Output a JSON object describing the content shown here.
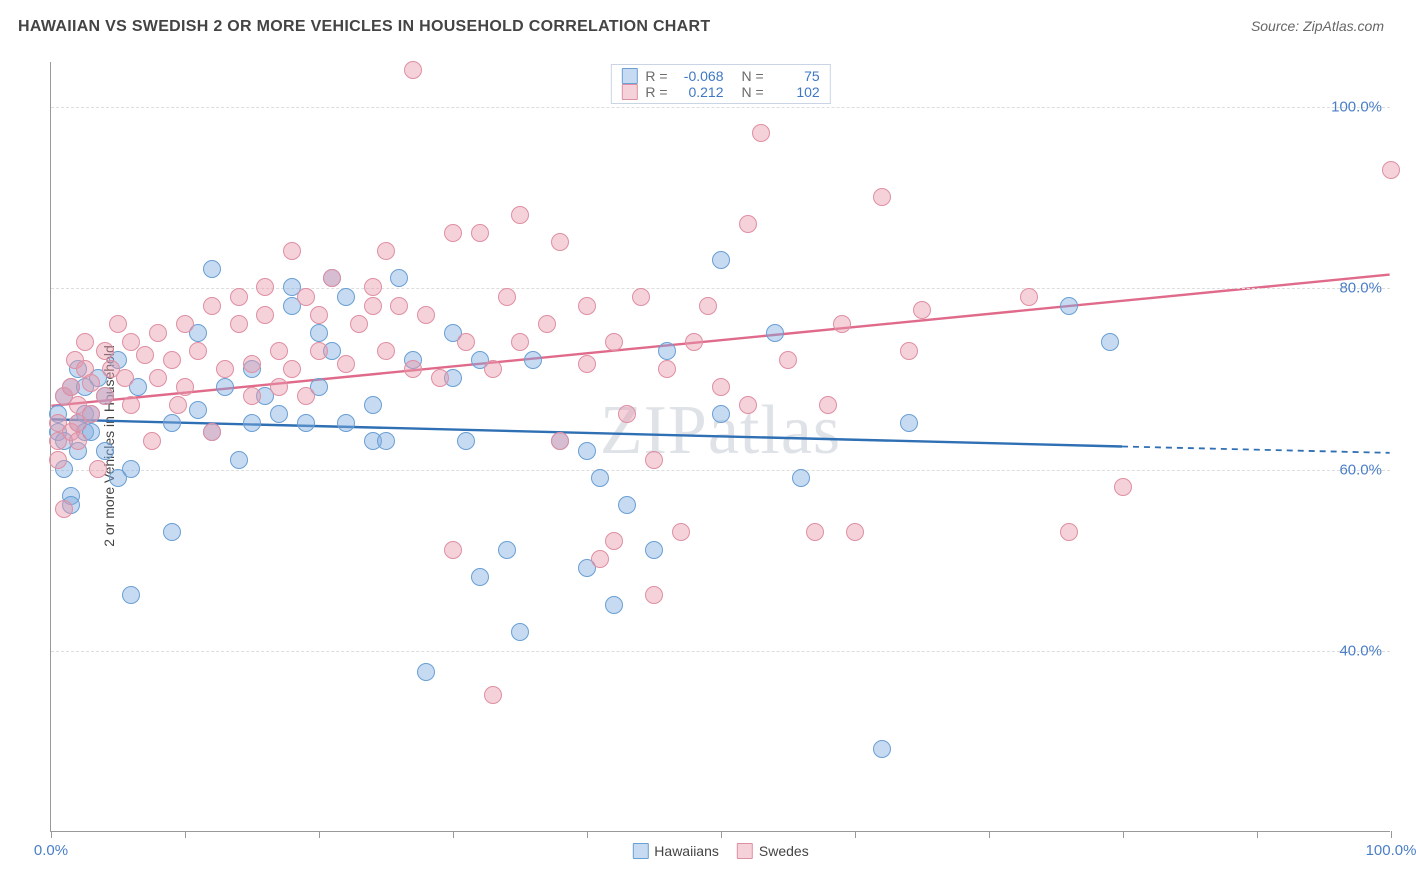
{
  "title": "HAWAIIAN VS SWEDISH 2 OR MORE VEHICLES IN HOUSEHOLD CORRELATION CHART",
  "source": "Source: ZipAtlas.com",
  "watermark": "ZIPatlas",
  "ylabel": "2 or more Vehicles in Household",
  "type": "scatter",
  "xlim": [
    0,
    100
  ],
  "ylim": [
    20,
    105
  ],
  "ytick_labels": [
    "40.0%",
    "60.0%",
    "80.0%",
    "100.0%"
  ],
  "ytick_values": [
    40,
    60,
    80,
    100
  ],
  "xtick_positions": [
    0,
    10,
    20,
    30,
    40,
    50,
    60,
    70,
    80,
    90,
    100
  ],
  "xtick_min_label": "0.0%",
  "xtick_max_label": "100.0%",
  "grid_color": "#dddddd",
  "axis_color": "#999999",
  "background_color": "#ffffff",
  "marker_radius": 9,
  "marker_stroke_width": 1.2,
  "series": [
    {
      "name": "Hawaiians",
      "fill_color": "rgba(129,172,223,0.45)",
      "stroke_color": "#6a9fd4",
      "line_color": "#2f6fb3",
      "R": "-0.068",
      "N": "75",
      "regression": {
        "x1": 0,
        "y1": 65.5,
        "x2": 80,
        "y2": 62.5,
        "x2_ext": 100,
        "y2_ext": 61.8
      },
      "points": [
        [
          0.5,
          64
        ],
        [
          0.5,
          66
        ],
        [
          1,
          68
        ],
        [
          1,
          63
        ],
        [
          1,
          60
        ],
        [
          1.5,
          69
        ],
        [
          1.5,
          57
        ],
        [
          1.5,
          56
        ],
        [
          2,
          65
        ],
        [
          2,
          71
        ],
        [
          2,
          62
        ],
        [
          2.5,
          64
        ],
        [
          2.5,
          66
        ],
        [
          2.5,
          69
        ],
        [
          3,
          64
        ],
        [
          3,
          66
        ],
        [
          3.5,
          70
        ],
        [
          4,
          62
        ],
        [
          4,
          68
        ],
        [
          5,
          59
        ],
        [
          5,
          72
        ],
        [
          6,
          46
        ],
        [
          6,
          60
        ],
        [
          6.5,
          69
        ],
        [
          9,
          65
        ],
        [
          9,
          53
        ],
        [
          11,
          66.5
        ],
        [
          11,
          75
        ],
        [
          12,
          82
        ],
        [
          12,
          64
        ],
        [
          13,
          69
        ],
        [
          14,
          61
        ],
        [
          15,
          65
        ],
        [
          15,
          71
        ],
        [
          16,
          68
        ],
        [
          17,
          66
        ],
        [
          18,
          78
        ],
        [
          18,
          80
        ],
        [
          19,
          65
        ],
        [
          20,
          75
        ],
        [
          20,
          69
        ],
        [
          21,
          73
        ],
        [
          21,
          81
        ],
        [
          22,
          79
        ],
        [
          22,
          65
        ],
        [
          24,
          67
        ],
        [
          24,
          63
        ],
        [
          25,
          63
        ],
        [
          26,
          81
        ],
        [
          27,
          72
        ],
        [
          28,
          37.5
        ],
        [
          30,
          75
        ],
        [
          30,
          70
        ],
        [
          31,
          63
        ],
        [
          32,
          72
        ],
        [
          32,
          48
        ],
        [
          34,
          51
        ],
        [
          35,
          42
        ],
        [
          36,
          72
        ],
        [
          38,
          63
        ],
        [
          40,
          62
        ],
        [
          40,
          49
        ],
        [
          41,
          59
        ],
        [
          42,
          45
        ],
        [
          43,
          56
        ],
        [
          45,
          51
        ],
        [
          46,
          73
        ],
        [
          50,
          83
        ],
        [
          50,
          66
        ],
        [
          54,
          75
        ],
        [
          56,
          59
        ],
        [
          62,
          29
        ],
        [
          64,
          65
        ],
        [
          76,
          78
        ],
        [
          79,
          74
        ]
      ]
    },
    {
      "name": "Swedes",
      "fill_color": "rgba(233,154,173,0.45)",
      "stroke_color": "#df8fa3",
      "line_color": "#e06a8a",
      "R": "0.212",
      "N": "102",
      "regression": {
        "x1": 0,
        "y1": 67,
        "x2": 100,
        "y2": 81.5
      },
      "points": [
        [
          0.5,
          61
        ],
        [
          0.5,
          63
        ],
        [
          0.5,
          65
        ],
        [
          1,
          68
        ],
        [
          1,
          55.5
        ],
        [
          1.5,
          64
        ],
        [
          1.5,
          69
        ],
        [
          1.8,
          72
        ],
        [
          2,
          67
        ],
        [
          2,
          65
        ],
        [
          2,
          63
        ],
        [
          2.5,
          71
        ],
        [
          2.5,
          74
        ],
        [
          3,
          69.5
        ],
        [
          3,
          66
        ],
        [
          3.5,
          60
        ],
        [
          4,
          68
        ],
        [
          4,
          73
        ],
        [
          4.5,
          71
        ],
        [
          5,
          76
        ],
        [
          5.5,
          70
        ],
        [
          6,
          67
        ],
        [
          6,
          74
        ],
        [
          7,
          72.5
        ],
        [
          7.5,
          63
        ],
        [
          8,
          70
        ],
        [
          8,
          75
        ],
        [
          9,
          72
        ],
        [
          9.5,
          67
        ],
        [
          10,
          76
        ],
        [
          10,
          69
        ],
        [
          11,
          73
        ],
        [
          12,
          78
        ],
        [
          12,
          64
        ],
        [
          13,
          71
        ],
        [
          14,
          79
        ],
        [
          14,
          76
        ],
        [
          15,
          68
        ],
        [
          15,
          71.5
        ],
        [
          16,
          77
        ],
        [
          16,
          80
        ],
        [
          17,
          69
        ],
        [
          17,
          73
        ],
        [
          18,
          71
        ],
        [
          18,
          84
        ],
        [
          19,
          79
        ],
        [
          19,
          68
        ],
        [
          20,
          73
        ],
        [
          20,
          77
        ],
        [
          21,
          81
        ],
        [
          22,
          71.5
        ],
        [
          23,
          76
        ],
        [
          24,
          80
        ],
        [
          24,
          78
        ],
        [
          25,
          73
        ],
        [
          25,
          84
        ],
        [
          26,
          78
        ],
        [
          27,
          104
        ],
        [
          27,
          71
        ],
        [
          28,
          77
        ],
        [
          29,
          70
        ],
        [
          30,
          86
        ],
        [
          30,
          51
        ],
        [
          31,
          74
        ],
        [
          32,
          86
        ],
        [
          33,
          71
        ],
        [
          33,
          35
        ],
        [
          34,
          79
        ],
        [
          35,
          88
        ],
        [
          35,
          74
        ],
        [
          37,
          76
        ],
        [
          38,
          63
        ],
        [
          38,
          85
        ],
        [
          40,
          71.5
        ],
        [
          40,
          78
        ],
        [
          41,
          50
        ],
        [
          42,
          74
        ],
        [
          42,
          52
        ],
        [
          43,
          66
        ],
        [
          44,
          79
        ],
        [
          45,
          61
        ],
        [
          45,
          46
        ],
        [
          46,
          71
        ],
        [
          47,
          53
        ],
        [
          48,
          74
        ],
        [
          49,
          78
        ],
        [
          50,
          69
        ],
        [
          52,
          87
        ],
        [
          52,
          67
        ],
        [
          53,
          97
        ],
        [
          55,
          72
        ],
        [
          57,
          53
        ],
        [
          58,
          67
        ],
        [
          59,
          76
        ],
        [
          60,
          53
        ],
        [
          62,
          90
        ],
        [
          64,
          73
        ],
        [
          65,
          77.5
        ],
        [
          73,
          79
        ],
        [
          76,
          53
        ],
        [
          80,
          58
        ],
        [
          100,
          93
        ]
      ]
    }
  ],
  "legend_label_a": "Hawaiians",
  "legend_label_b": "Swedes"
}
